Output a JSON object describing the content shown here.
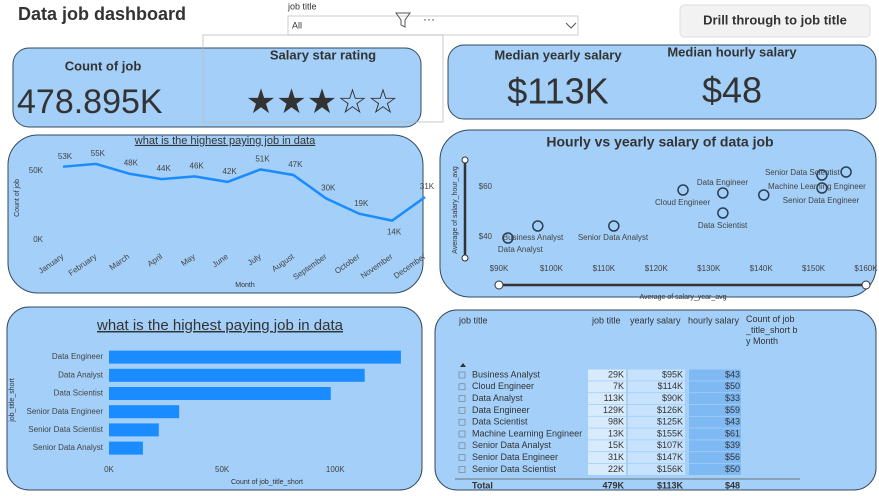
{
  "header": {
    "title": "Data job dashboard",
    "filter_label": "job title",
    "filter_value": "All",
    "button": "Drill through to job title"
  },
  "cards": [
    {
      "label": "Count of job",
      "value": "478.895K"
    },
    {
      "label": "Salary star rating",
      "value": "★★★☆☆"
    },
    {
      "label": "Median yearly salary",
      "value": "$113K"
    },
    {
      "label": "Median hourly salary",
      "value": "$48"
    }
  ],
  "chart_data": [
    {
      "type": "line",
      "title": "what is the highest paying job in data",
      "x_label": "Month",
      "y_label": "Count of job",
      "categories": [
        "January",
        "February",
        "March",
        "April",
        "May",
        "June",
        "July",
        "August",
        "September",
        "October",
        "November",
        "December"
      ],
      "values": [
        53000,
        55000,
        48000,
        44000,
        46000,
        42000,
        51000,
        47000,
        30000,
        19000,
        14000,
        31000
      ],
      "value_labels": [
        "53K",
        "55K",
        "48K",
        "44K",
        "46K",
        "42K",
        "51K",
        "47K",
        "30K",
        "19K",
        "14K",
        "31K"
      ],
      "color": "#1a8cff",
      "ylim": [
        0,
        60000
      ],
      "yticks": [
        {
          "value": 0,
          "label": "0K"
        },
        {
          "value": 50000,
          "label": "50K"
        }
      ]
    },
    {
      "type": "scatter",
      "title": "Hourly vs yearly salary of data job",
      "x_label": "Average of salary_year_avg",
      "y_label": "Average of salary_hour_avg",
      "x": [
        91700,
        97400,
        111900,
        125100,
        132700,
        132700,
        140500,
        151600,
        151600,
        156200
      ],
      "values": [
        39.6,
        44.4,
        44.4,
        58.8,
        57.6,
        49.6,
        56.8,
        64.8,
        59.6,
        66
      ],
      "labels": [
        "Data Analyst",
        "Business Analyst",
        "Senior Data Analyst",
        "Cloud Engineer",
        "Data Engineer",
        "Data Scientist",
        "Senior Data Engineer",
        "Senior Data Scientist",
        "Machine Learning Engineer",
        null
      ],
      "color": "#2b3f55",
      "xlim": [
        90000,
        160000
      ],
      "ylim": [
        30,
        70
      ],
      "xticks": [
        {
          "value": 90000,
          "label": "$90K"
        },
        {
          "value": 100000,
          "label": "$100K"
        },
        {
          "value": 110000,
          "label": "$110K"
        },
        {
          "value": 120000,
          "label": "$120K"
        },
        {
          "value": 130000,
          "label": "$130K"
        },
        {
          "value": 140000,
          "label": "$140K"
        },
        {
          "value": 150000,
          "label": "$150K"
        },
        {
          "value": 160000,
          "label": "$160K"
        }
      ],
      "yticks": [
        {
          "value": 40,
          "label": "$40"
        },
        {
          "value": 60,
          "label": "$60"
        }
      ]
    },
    {
      "type": "hbar",
      "title": "what is the highest paying job in data",
      "x_label": "Count of job_title_short",
      "y_label": "job_title_short",
      "categories": [
        "Data Engineer",
        "Data Analyst",
        "Data Scientist",
        "Senior Data Engineer",
        "Senior Data Scientist",
        "Senior Data Analyst"
      ],
      "values": [
        129000,
        113000,
        98000,
        31000,
        22000,
        15000
      ],
      "color": "#1a8cff",
      "xlim": [
        0,
        137000
      ],
      "xticks": [
        {
          "value": 0,
          "label": "0K"
        },
        {
          "value": 50000,
          "label": "50K"
        },
        {
          "value": 100000,
          "label": "100K"
        }
      ]
    }
  ],
  "table": {
    "columns": [
      "job title",
      "job title",
      "yearly salary",
      "hourly salary",
      "Count of job_title_short by Month"
    ],
    "rows": [
      [
        "Business Analyst",
        "29K",
        "$95K",
        "$43"
      ],
      [
        "Cloud Engineer",
        "7K",
        "$114K",
        "$50"
      ],
      [
        "Data Analyst",
        "113K",
        "$90K",
        "$33"
      ],
      [
        "Data Engineer",
        "129K",
        "$126K",
        "$59"
      ],
      [
        "Data Scientist",
        "98K",
        "$125K",
        "$43"
      ],
      [
        "Machine Learning Engineer",
        "13K",
        "$155K",
        "$61"
      ],
      [
        "Senior Data Analyst",
        "15K",
        "$107K",
        "$39"
      ],
      [
        "Senior Data Engineer",
        "31K",
        "$147K",
        "$56"
      ],
      [
        "Senior Data Scientist",
        "22K",
        "$156K",
        "$50"
      ]
    ],
    "total": [
      "Total",
      "479K",
      "$113K",
      "$48"
    ]
  }
}
